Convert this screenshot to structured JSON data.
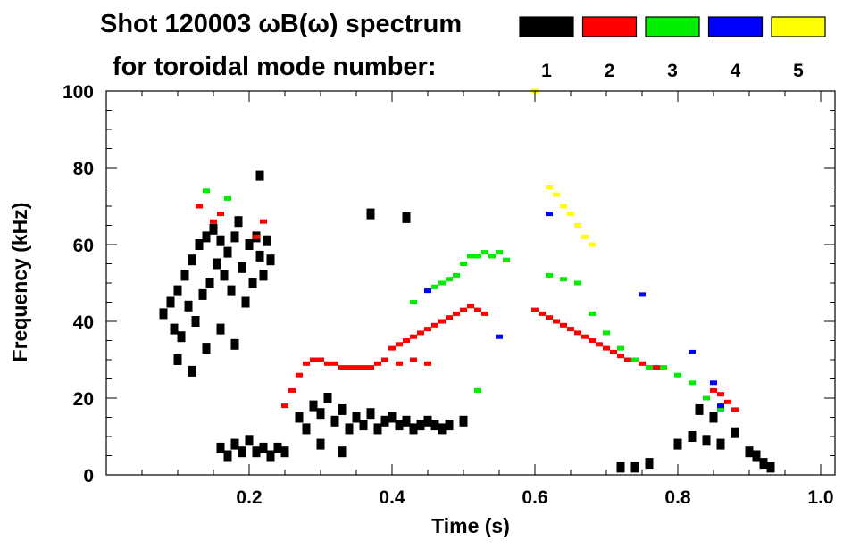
{
  "chart_data": {
    "type": "scatter",
    "title_line1": "Shot 120003 ωB(ω) spectrum",
    "title_line2": "for toroidal mode number:",
    "xlabel": "Time (s)",
    "ylabel": "Frequency (kHz)",
    "xlim": [
      0.0,
      1.02
    ],
    "ylim": [
      0,
      100
    ],
    "xticks": [
      0.2,
      0.4,
      0.6,
      0.8,
      1.0
    ],
    "xtick_labels": [
      "0.2",
      "0.4",
      "0.6",
      "0.8",
      "1.0"
    ],
    "yticks": [
      0,
      20,
      40,
      60,
      80,
      100
    ],
    "ytick_labels": [
      "0",
      "20",
      "40",
      "60",
      "80",
      "100"
    ],
    "legend": [
      {
        "label": "1",
        "color": "#000000"
      },
      {
        "label": "2",
        "color": "#ff0000"
      },
      {
        "label": "3",
        "color": "#00ee00"
      },
      {
        "label": "4",
        "color": "#0000ff"
      },
      {
        "label": "5",
        "color": "#ffff00"
      }
    ],
    "series": [
      {
        "name": "1",
        "color": "#000000",
        "points": [
          [
            0.08,
            42
          ],
          [
            0.09,
            45
          ],
          [
            0.095,
            38
          ],
          [
            0.1,
            48
          ],
          [
            0.105,
            36
          ],
          [
            0.11,
            52
          ],
          [
            0.115,
            44
          ],
          [
            0.12,
            56
          ],
          [
            0.125,
            40
          ],
          [
            0.13,
            60
          ],
          [
            0.135,
            47
          ],
          [
            0.14,
            62
          ],
          [
            0.145,
            50
          ],
          [
            0.15,
            64
          ],
          [
            0.155,
            55
          ],
          [
            0.16,
            61
          ],
          [
            0.165,
            52
          ],
          [
            0.17,
            58
          ],
          [
            0.175,
            48
          ],
          [
            0.18,
            62
          ],
          [
            0.185,
            66
          ],
          [
            0.19,
            54
          ],
          [
            0.195,
            45
          ],
          [
            0.2,
            60
          ],
          [
            0.205,
            50
          ],
          [
            0.21,
            62
          ],
          [
            0.215,
            57
          ],
          [
            0.22,
            52
          ],
          [
            0.225,
            61
          ],
          [
            0.23,
            56
          ],
          [
            0.1,
            30
          ],
          [
            0.12,
            27
          ],
          [
            0.14,
            33
          ],
          [
            0.16,
            38
          ],
          [
            0.18,
            34
          ],
          [
            0.215,
            78
          ],
          [
            0.16,
            7
          ],
          [
            0.17,
            5
          ],
          [
            0.18,
            8
          ],
          [
            0.19,
            6
          ],
          [
            0.2,
            9
          ],
          [
            0.21,
            6
          ],
          [
            0.22,
            7
          ],
          [
            0.23,
            5
          ],
          [
            0.24,
            7
          ],
          [
            0.25,
            6
          ],
          [
            0.27,
            15
          ],
          [
            0.28,
            12
          ],
          [
            0.29,
            18
          ],
          [
            0.3,
            16
          ],
          [
            0.31,
            20
          ],
          [
            0.32,
            14
          ],
          [
            0.33,
            17
          ],
          [
            0.34,
            12
          ],
          [
            0.35,
            15
          ],
          [
            0.36,
            13
          ],
          [
            0.37,
            16
          ],
          [
            0.38,
            12
          ],
          [
            0.39,
            14
          ],
          [
            0.4,
            15
          ],
          [
            0.41,
            13
          ],
          [
            0.42,
            14
          ],
          [
            0.43,
            12
          ],
          [
            0.44,
            13
          ],
          [
            0.45,
            14
          ],
          [
            0.46,
            13
          ],
          [
            0.47,
            12
          ],
          [
            0.48,
            13
          ],
          [
            0.5,
            14
          ],
          [
            0.3,
            8
          ],
          [
            0.33,
            6
          ],
          [
            0.72,
            2
          ],
          [
            0.74,
            2
          ],
          [
            0.76,
            3
          ],
          [
            0.8,
            8
          ],
          [
            0.82,
            10
          ],
          [
            0.84,
            9
          ],
          [
            0.86,
            8
          ],
          [
            0.88,
            11
          ],
          [
            0.9,
            6
          ],
          [
            0.91,
            5
          ],
          [
            0.92,
            3
          ],
          [
            0.93,
            2
          ],
          [
            0.83,
            17
          ],
          [
            0.85,
            15
          ],
          [
            0.37,
            68
          ],
          [
            0.42,
            67
          ]
        ]
      },
      {
        "name": "2",
        "color": "#ff0000",
        "points": [
          [
            0.13,
            70
          ],
          [
            0.15,
            66
          ],
          [
            0.16,
            68
          ],
          [
            0.21,
            62
          ],
          [
            0.22,
            66
          ],
          [
            0.25,
            18
          ],
          [
            0.26,
            22
          ],
          [
            0.27,
            26
          ],
          [
            0.28,
            29
          ],
          [
            0.29,
            30
          ],
          [
            0.3,
            30
          ],
          [
            0.31,
            29
          ],
          [
            0.32,
            29
          ],
          [
            0.33,
            28
          ],
          [
            0.34,
            28
          ],
          [
            0.35,
            28
          ],
          [
            0.36,
            28
          ],
          [
            0.37,
            28
          ],
          [
            0.38,
            29
          ],
          [
            0.4,
            33
          ],
          [
            0.41,
            34
          ],
          [
            0.42,
            35
          ],
          [
            0.43,
            36
          ],
          [
            0.44,
            37
          ],
          [
            0.45,
            38
          ],
          [
            0.46,
            39
          ],
          [
            0.47,
            40
          ],
          [
            0.48,
            41
          ],
          [
            0.49,
            42
          ],
          [
            0.5,
            43
          ],
          [
            0.51,
            44
          ],
          [
            0.52,
            43
          ],
          [
            0.53,
            42
          ],
          [
            0.39,
            30
          ],
          [
            0.41,
            29
          ],
          [
            0.43,
            30
          ],
          [
            0.45,
            29
          ],
          [
            0.6,
            43
          ],
          [
            0.61,
            42
          ],
          [
            0.62,
            41
          ],
          [
            0.63,
            40
          ],
          [
            0.64,
            39
          ],
          [
            0.65,
            38
          ],
          [
            0.66,
            37
          ],
          [
            0.67,
            36
          ],
          [
            0.68,
            35
          ],
          [
            0.69,
            34
          ],
          [
            0.7,
            33
          ],
          [
            0.71,
            32
          ],
          [
            0.72,
            31
          ],
          [
            0.73,
            30
          ],
          [
            0.74,
            30
          ],
          [
            0.75,
            29
          ],
          [
            0.76,
            28
          ],
          [
            0.77,
            28
          ],
          [
            0.85,
            22
          ],
          [
            0.86,
            21
          ],
          [
            0.87,
            19
          ],
          [
            0.88,
            17
          ],
          [
            0.84,
            20
          ]
        ]
      },
      {
        "name": "3",
        "color": "#00ee00",
        "points": [
          [
            0.14,
            74
          ],
          [
            0.17,
            72
          ],
          [
            0.45,
            48
          ],
          [
            0.46,
            49
          ],
          [
            0.47,
            50
          ],
          [
            0.48,
            51
          ],
          [
            0.49,
            52
          ],
          [
            0.5,
            55
          ],
          [
            0.51,
            57
          ],
          [
            0.52,
            57
          ],
          [
            0.53,
            58
          ],
          [
            0.54,
            57
          ],
          [
            0.55,
            58
          ],
          [
            0.56,
            56
          ],
          [
            0.62,
            52
          ],
          [
            0.64,
            51
          ],
          [
            0.66,
            50
          ],
          [
            0.68,
            42
          ],
          [
            0.7,
            37
          ],
          [
            0.72,
            33
          ],
          [
            0.74,
            30
          ],
          [
            0.76,
            28
          ],
          [
            0.78,
            28
          ],
          [
            0.8,
            26
          ],
          [
            0.82,
            24
          ],
          [
            0.84,
            20
          ],
          [
            0.86,
            17
          ],
          [
            0.43,
            45
          ],
          [
            0.52,
            22
          ]
        ]
      },
      {
        "name": "4",
        "color": "#0000ff",
        "points": [
          [
            0.45,
            48
          ],
          [
            0.55,
            36
          ],
          [
            0.62,
            68
          ],
          [
            0.75,
            47
          ],
          [
            0.82,
            32
          ],
          [
            0.85,
            24
          ],
          [
            0.86,
            18
          ]
        ]
      },
      {
        "name": "5",
        "color": "#ffff00",
        "points": [
          [
            0.6,
            100
          ],
          [
            0.62,
            75
          ],
          [
            0.63,
            73
          ],
          [
            0.64,
            70
          ],
          [
            0.65,
            68
          ],
          [
            0.66,
            65
          ],
          [
            0.67,
            62
          ],
          [
            0.68,
            60
          ]
        ]
      }
    ]
  }
}
